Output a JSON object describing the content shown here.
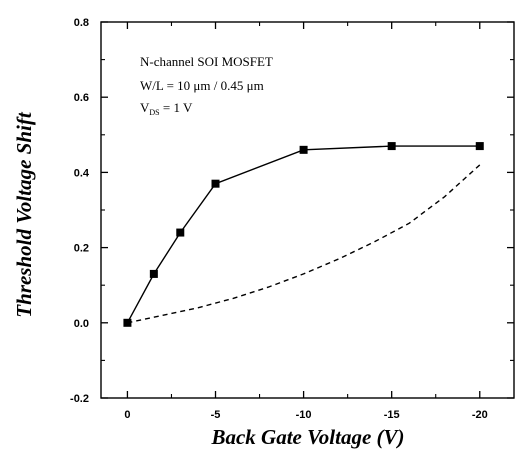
{
  "chart_data": {
    "type": "line",
    "title": "",
    "xlabel": "Back Gate Voltage (V)",
    "ylabel": "Threshold Voltage Shift",
    "xlim": [
      1.5,
      -22
    ],
    "ylim": [
      -0.2,
      0.8
    ],
    "x_ticks": [
      0,
      -5,
      -10,
      -15,
      -20
    ],
    "x_tick_labels": [
      "0",
      "-5",
      "-10",
      "-15",
      "-20"
    ],
    "y_ticks": [
      -0.2,
      0.0,
      0.2,
      0.4,
      0.6,
      0.8
    ],
    "y_tick_labels": [
      "-0.2",
      "0.0",
      "0.2",
      "0.4",
      "0.6",
      "0.8"
    ],
    "grid": false,
    "annotations": {
      "line1": "N-channel SOI MOSFET",
      "line2": "W/L = 10 μm / 0.45 μm",
      "line3_main": "V",
      "line3_sub": "DS",
      "line3_rest": " = 1 V"
    },
    "series": [
      {
        "marker": "square",
        "line_style": "solid",
        "x": [
          0,
          -1.5,
          -3,
          -5,
          -10,
          -15,
          -20
        ],
        "y": [
          0.0,
          0.13,
          0.24,
          0.37,
          0.46,
          0.47,
          0.47
        ]
      },
      {
        "marker": "none",
        "line_style": "dashed",
        "x": [
          0,
          -2,
          -4,
          -6,
          -8,
          -10,
          -12,
          -14,
          -16,
          -18,
          -20
        ],
        "y": [
          0.0,
          0.02,
          0.04,
          0.065,
          0.095,
          0.13,
          0.17,
          0.215,
          0.265,
          0.335,
          0.42
        ]
      }
    ]
  }
}
